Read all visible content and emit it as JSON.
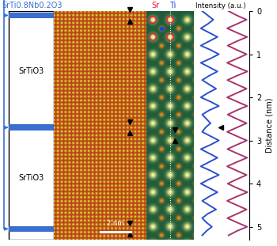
{
  "chart_data": {
    "type": "line",
    "header_left": "SrTi0.8Nb0.2O3",
    "host_layers": [
      "SrTiO3",
      "SrTiO3"
    ],
    "atom_labels": [
      "Sr",
      "Ti"
    ],
    "xlabel": "Intensity (a.u.)",
    "ylabel": "Distance (nm)",
    "scale_bar": "2 nm",
    "doped_layers": [
      0.1,
      2.7,
      5.05
    ],
    "marked_layer": 2.7,
    "ylim": [
      5.3,
      0
    ],
    "yticks": [
      0,
      1,
      2,
      3,
      4,
      5
    ],
    "xlim": [
      0,
      1
    ],
    "tick_labels": "y",
    "y": [
      0.0,
      0.1,
      0.2,
      0.3,
      0.4,
      0.5,
      0.6,
      0.7,
      0.8,
      0.9,
      1.0,
      1.1,
      1.2,
      1.3,
      1.4,
      1.5,
      1.6,
      1.7,
      1.8,
      1.9,
      2.0,
      2.1,
      2.2,
      2.3,
      2.4,
      2.5,
      2.6,
      2.7,
      2.8,
      2.9,
      3.0,
      3.1,
      3.2,
      3.3,
      3.4,
      3.5,
      3.6,
      3.7,
      3.8,
      3.9,
      4.0,
      4.1,
      4.2,
      4.3,
      4.4,
      4.5,
      4.6,
      4.7,
      4.8,
      4.9,
      5.0,
      5.1,
      5.2
    ],
    "series": [
      {
        "color": "#2b4fd0",
        "values": [
          0.3,
          0.5,
          0.7,
          0.5,
          0.25,
          0.55,
          0.85,
          0.55,
          0.25,
          0.6,
          0.9,
          0.6,
          0.25,
          0.55,
          0.85,
          0.55,
          0.3,
          0.55,
          0.8,
          0.5,
          0.25,
          0.6,
          0.9,
          0.55,
          0.3,
          0.45,
          0.6,
          0.42,
          0.3,
          0.6,
          0.9,
          0.6,
          0.25,
          0.55,
          0.85,
          0.55,
          0.25,
          0.6,
          0.9,
          0.55,
          0.25,
          0.55,
          0.85,
          0.55,
          0.3,
          0.55,
          0.8,
          0.5,
          0.3,
          0.45,
          0.65,
          0.45,
          0.3
        ]
      },
      {
        "color": "#a8336e",
        "values": [
          0.25,
          0.55,
          0.9,
          0.55,
          0.2,
          0.55,
          0.92,
          0.55,
          0.22,
          0.55,
          0.9,
          0.56,
          0.2,
          0.55,
          0.93,
          0.55,
          0.21,
          0.55,
          0.9,
          0.55,
          0.2,
          0.56,
          0.92,
          0.55,
          0.22,
          0.55,
          0.9,
          0.55,
          0.2,
          0.55,
          0.91,
          0.55,
          0.21,
          0.56,
          0.92,
          0.55,
          0.2,
          0.55,
          0.9,
          0.55,
          0.22,
          0.55,
          0.93,
          0.55,
          0.2,
          0.55,
          0.9,
          0.56,
          0.21,
          0.55,
          0.92,
          0.55,
          0.25
        ]
      }
    ]
  }
}
